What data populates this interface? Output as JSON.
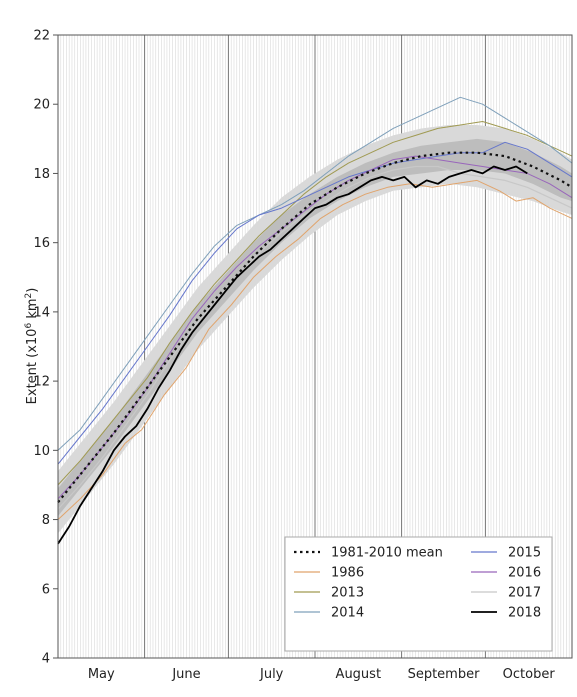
{
  "chart_data": {
    "type": "line",
    "title": "",
    "ylabel": "Extent (x10",
    "ylabel_sup": "6",
    "ylabel_unit": " km",
    "ylabel_unit_sup": "2",
    "ylabel_close": ")",
    "ylim": [
      4,
      22
    ],
    "yticks": [
      "4",
      "6",
      "8",
      "10",
      "12",
      "14",
      "16",
      "18",
      "20",
      "22"
    ],
    "xlim": [
      0,
      184
    ],
    "month_labels": [
      {
        "label": "May",
        "x": 15.5
      },
      {
        "label": "June",
        "x": 46
      },
      {
        "label": "July",
        "x": 76.5
      },
      {
        "label": "August",
        "x": 107.5
      },
      {
        "label": "September",
        "x": 138
      },
      {
        "label": "October",
        "x": 168.5
      }
    ],
    "month_boundaries": [
      31,
      61,
      92,
      123,
      153
    ],
    "legend_position": "bottom-right",
    "mean_band": {
      "x": [
        0,
        10,
        20,
        30,
        40,
        50,
        60,
        70,
        80,
        90,
        100,
        110,
        120,
        130,
        140,
        150,
        160,
        170,
        180,
        184
      ],
      "inner_low": [
        8.1,
        9.1,
        10.1,
        11.2,
        12.3,
        13.4,
        14.3,
        15.2,
        16.0,
        16.7,
        17.2,
        17.6,
        17.9,
        18.0,
        18.1,
        18.1,
        18.0,
        17.7,
        17.3,
        17.2
      ],
      "inner_high": [
        8.9,
        9.9,
        10.9,
        12.0,
        13.1,
        14.2,
        15.1,
        16.0,
        16.8,
        17.4,
        17.9,
        18.3,
        18.6,
        18.8,
        18.9,
        19.0,
        18.9,
        18.6,
        18.2,
        18.0
      ],
      "outer_low": [
        7.6,
        8.6,
        9.6,
        10.7,
        11.8,
        12.9,
        13.8,
        14.7,
        15.5,
        16.2,
        16.8,
        17.2,
        17.5,
        17.6,
        17.7,
        17.6,
        17.4,
        17.2,
        16.9,
        16.8
      ],
      "outer_high": [
        9.4,
        10.4,
        11.4,
        12.5,
        13.6,
        14.7,
        15.6,
        16.5,
        17.3,
        17.9,
        18.4,
        18.8,
        19.1,
        19.3,
        19.4,
        19.4,
        19.3,
        19.0,
        18.6,
        18.4
      ]
    },
    "series": [
      {
        "name": "1981-2010 mean",
        "color": "#111111",
        "width": 2.2,
        "dash": "2.5,3.5",
        "x": [
          0,
          10,
          20,
          30,
          40,
          50,
          60,
          70,
          80,
          90,
          100,
          110,
          120,
          130,
          140,
          150,
          160,
          170,
          180,
          184
        ],
        "y": [
          8.5,
          9.5,
          10.5,
          11.6,
          12.7,
          13.8,
          14.7,
          15.6,
          16.4,
          17.1,
          17.6,
          18.0,
          18.3,
          18.5,
          18.6,
          18.6,
          18.5,
          18.2,
          17.8,
          17.6
        ]
      },
      {
        "name": "1986",
        "color": "#e0a46c",
        "width": 1,
        "x": [
          0,
          8,
          16,
          24,
          30,
          38,
          46,
          54,
          62,
          70,
          78,
          86,
          94,
          102,
          110,
          118,
          126,
          134,
          142,
          150,
          158,
          164,
          170,
          176,
          184
        ],
        "y": [
          8.0,
          8.6,
          9.3,
          10.2,
          10.6,
          11.6,
          12.4,
          13.5,
          14.2,
          15.0,
          15.6,
          16.1,
          16.7,
          17.1,
          17.4,
          17.6,
          17.7,
          17.6,
          17.7,
          17.8,
          17.5,
          17.2,
          17.3,
          17.0,
          16.7
        ]
      },
      {
        "name": "2013",
        "color": "#a09a52",
        "width": 1,
        "x": [
          0,
          8,
          16,
          24,
          32,
          40,
          48,
          56,
          64,
          72,
          80,
          88,
          96,
          104,
          112,
          120,
          128,
          136,
          144,
          152,
          160,
          168,
          176,
          184
        ],
        "y": [
          9.0,
          9.7,
          10.5,
          11.3,
          12.1,
          13.1,
          14.0,
          14.8,
          15.5,
          16.2,
          16.8,
          17.4,
          17.9,
          18.3,
          18.6,
          18.9,
          19.1,
          19.3,
          19.4,
          19.5,
          19.3,
          19.1,
          18.8,
          18.5
        ]
      },
      {
        "name": "2014",
        "color": "#7fa0ba",
        "width": 1,
        "x": [
          0,
          8,
          16,
          24,
          32,
          40,
          48,
          56,
          64,
          72,
          80,
          88,
          96,
          104,
          112,
          120,
          128,
          136,
          144,
          152,
          160,
          168,
          176,
          184
        ],
        "y": [
          10.0,
          10.6,
          11.5,
          12.4,
          13.3,
          14.2,
          15.1,
          15.9,
          16.5,
          16.8,
          17.1,
          17.5,
          18.0,
          18.5,
          18.9,
          19.3,
          19.6,
          19.9,
          20.2,
          20.0,
          19.6,
          19.2,
          18.8,
          18.3
        ]
      },
      {
        "name": "2015",
        "color": "#6677cc",
        "width": 1,
        "x": [
          0,
          8,
          16,
          24,
          32,
          40,
          48,
          56,
          64,
          72,
          80,
          88,
          96,
          104,
          112,
          120,
          128,
          136,
          144,
          152,
          160,
          168,
          176,
          184
        ],
        "y": [
          9.6,
          10.4,
          11.2,
          12.1,
          13.0,
          13.9,
          14.9,
          15.7,
          16.4,
          16.8,
          17.0,
          17.3,
          17.6,
          17.9,
          18.1,
          18.3,
          18.4,
          18.5,
          18.6,
          18.6,
          18.9,
          18.7,
          18.3,
          17.9
        ]
      },
      {
        "name": "2016",
        "color": "#9966bb",
        "width": 1,
        "x": [
          0,
          8,
          16,
          24,
          32,
          40,
          48,
          56,
          64,
          72,
          80,
          88,
          96,
          104,
          112,
          120,
          128,
          136,
          144,
          152,
          160,
          168,
          176,
          184
        ],
        "y": [
          8.6,
          9.3,
          10.1,
          10.9,
          11.8,
          12.8,
          13.8,
          14.6,
          15.3,
          15.9,
          16.4,
          16.9,
          17.4,
          17.8,
          18.1,
          18.4,
          18.5,
          18.4,
          18.3,
          18.2,
          18.1,
          18.0,
          17.7,
          17.3
        ]
      },
      {
        "name": "2017",
        "color": "#c8c8c8",
        "width": 1.2,
        "x": [
          0,
          8,
          16,
          24,
          32,
          40,
          48,
          56,
          64,
          72,
          80,
          88,
          96,
          104,
          112,
          120,
          128,
          136,
          144,
          152,
          160,
          168,
          176,
          184
        ],
        "y": [
          8.3,
          9.0,
          9.8,
          10.7,
          11.6,
          12.6,
          13.5,
          14.3,
          15.0,
          15.7,
          16.3,
          16.8,
          17.2,
          17.6,
          17.9,
          18.1,
          18.2,
          18.2,
          18.0,
          17.9,
          17.8,
          17.6,
          17.3,
          17.0
        ]
      },
      {
        "name": "2018",
        "color": "#000000",
        "width": 1.8,
        "x": [
          0,
          4,
          8,
          12,
          16,
          20,
          24,
          28,
          32,
          36,
          40,
          44,
          48,
          52,
          56,
          60,
          64,
          68,
          72,
          76,
          80,
          84,
          88,
          92,
          96,
          100,
          104,
          108,
          112,
          116,
          120,
          124,
          128,
          132,
          136,
          140,
          144,
          148,
          152,
          156,
          160,
          164,
          168
        ],
        "y": [
          7.3,
          7.8,
          8.4,
          8.9,
          9.4,
          10.0,
          10.4,
          10.7,
          11.2,
          11.8,
          12.3,
          12.9,
          13.4,
          13.8,
          14.2,
          14.6,
          15.0,
          15.3,
          15.6,
          15.8,
          16.1,
          16.4,
          16.7,
          17.0,
          17.1,
          17.3,
          17.4,
          17.6,
          17.8,
          17.9,
          17.8,
          17.9,
          17.6,
          17.8,
          17.7,
          17.9,
          18.0,
          18.1,
          18.0,
          18.2,
          18.1,
          18.2,
          18.0
        ]
      }
    ],
    "legend": [
      [
        "1981-2010 mean",
        "2015"
      ],
      [
        "1986",
        "2016"
      ],
      [
        "2013",
        "2017"
      ],
      [
        "2014",
        "2018"
      ]
    ]
  }
}
